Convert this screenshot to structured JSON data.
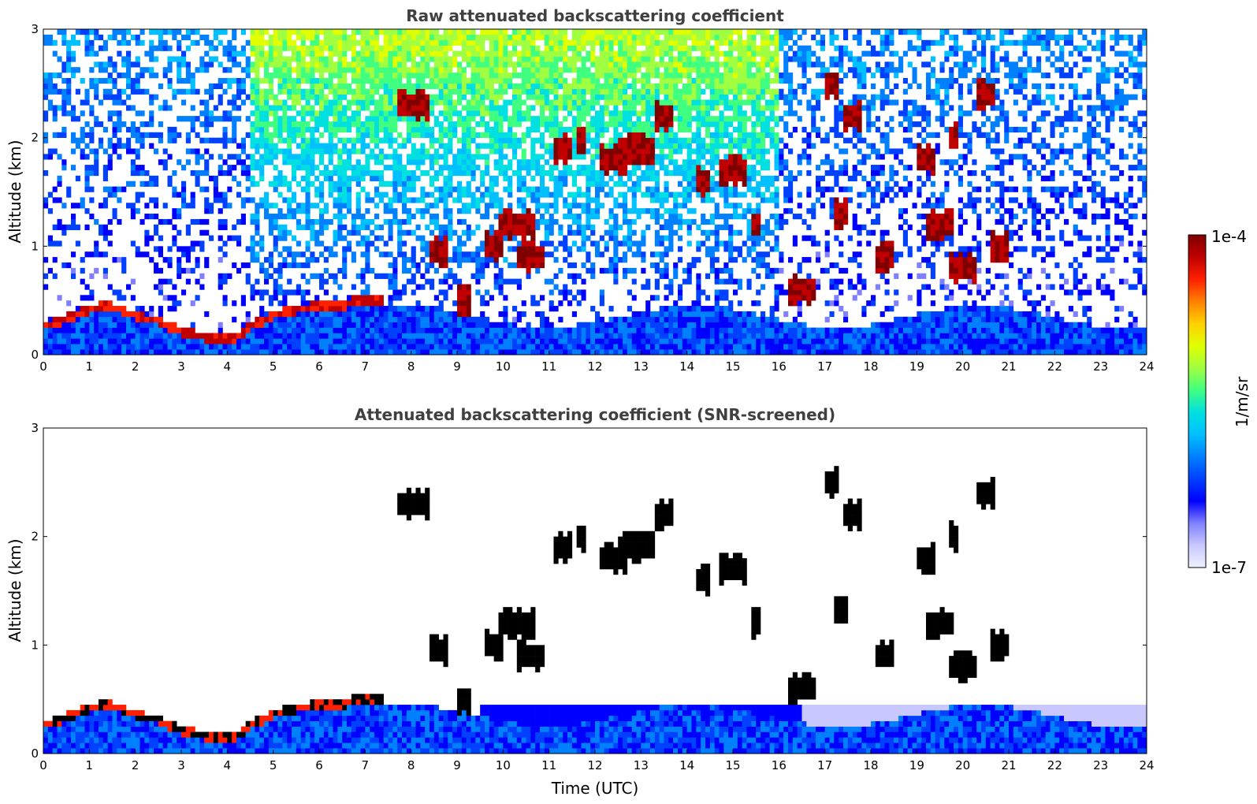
{
  "chart_data": [
    {
      "type": "heatmap",
      "title": "Raw attenuated backscattering coefficient",
      "xlabel": "",
      "ylabel": "Altitude (km)",
      "xlim": [
        0,
        24
      ],
      "ylim": [
        0,
        3
      ],
      "x_ticks": [
        0,
        1,
        2,
        3,
        4,
        5,
        6,
        7,
        8,
        9,
        10,
        11,
        12,
        13,
        14,
        15,
        16,
        17,
        18,
        19,
        20,
        21,
        22,
        23,
        24
      ],
      "y_ticks": [
        0,
        1,
        2,
        3
      ],
      "screened": false,
      "boundary_layer": [
        [
          0,
          0.3
        ],
        [
          1,
          0.45
        ],
        [
          1.4,
          0.5
        ],
        [
          2,
          0.4
        ],
        [
          2.5,
          0.35
        ],
        [
          3,
          0.25
        ],
        [
          3.5,
          0.2
        ],
        [
          4.2,
          0.2
        ],
        [
          4.5,
          0.3
        ],
        [
          5,
          0.4
        ],
        [
          5.5,
          0.45
        ],
        [
          6,
          0.5
        ],
        [
          6.5,
          0.5
        ],
        [
          7,
          0.55
        ],
        [
          7.4,
          0.55
        ]
      ],
      "cloud_segments": [
        [
          8.1,
          2.3,
          0.35
        ],
        [
          8.6,
          0.95,
          0.25
        ],
        [
          9.2,
          0.5,
          0.15
        ],
        [
          9.8,
          1.0,
          0.25
        ],
        [
          10.3,
          1.2,
          0.35
        ],
        [
          10.6,
          0.9,
          0.3
        ],
        [
          11.3,
          1.9,
          0.25
        ],
        [
          11.7,
          2.0,
          0.1
        ],
        [
          12.4,
          1.8,
          0.3
        ],
        [
          12.9,
          1.9,
          0.35
        ],
        [
          13.5,
          2.2,
          0.2
        ],
        [
          14.3,
          1.6,
          0.15
        ],
        [
          15.0,
          1.7,
          0.3
        ],
        [
          15.5,
          1.2,
          0.1
        ],
        [
          16.5,
          0.6,
          0.3
        ],
        [
          17.3,
          1.3,
          0.15
        ],
        [
          17.2,
          2.5,
          0.15
        ],
        [
          17.6,
          2.2,
          0.2
        ],
        [
          18.3,
          0.9,
          0.2
        ],
        [
          19.2,
          1.8,
          0.2
        ],
        [
          19.5,
          1.2,
          0.3
        ],
        [
          19.8,
          2.0,
          0.1
        ],
        [
          20.0,
          0.8,
          0.3
        ],
        [
          20.5,
          2.4,
          0.2
        ],
        [
          20.8,
          1.0,
          0.15
        ]
      ],
      "colorbar": {
        "label": "1/m/sr",
        "min_label": "1e-7",
        "max_label": "1e-4",
        "scale": "log"
      }
    },
    {
      "type": "heatmap",
      "title": "Attenuated backscattering coefficient (SNR-screened)",
      "xlabel": "Time (UTC)",
      "ylabel": "Altitude (km)",
      "xlim": [
        0,
        24
      ],
      "ylim": [
        0,
        3
      ],
      "x_ticks": [
        0,
        1,
        2,
        3,
        4,
        5,
        6,
        7,
        8,
        9,
        10,
        11,
        12,
        13,
        14,
        15,
        16,
        17,
        18,
        19,
        20,
        21,
        22,
        23,
        24
      ],
      "y_ticks": [
        0,
        1,
        2,
        3
      ],
      "screened": true,
      "boundary_layer": [
        [
          0,
          0.3
        ],
        [
          1,
          0.45
        ],
        [
          1.4,
          0.5
        ],
        [
          2,
          0.4
        ],
        [
          2.5,
          0.35
        ],
        [
          3,
          0.25
        ],
        [
          3.5,
          0.2
        ],
        [
          4.2,
          0.2
        ],
        [
          4.5,
          0.3
        ],
        [
          5,
          0.4
        ],
        [
          5.5,
          0.45
        ],
        [
          6,
          0.5
        ],
        [
          6.5,
          0.5
        ],
        [
          7,
          0.55
        ],
        [
          7.4,
          0.55
        ]
      ],
      "cloud_segments": [
        [
          8.1,
          2.3,
          0.35
        ],
        [
          8.6,
          0.95,
          0.25
        ],
        [
          9.2,
          0.5,
          0.15
        ],
        [
          9.8,
          1.0,
          0.25
        ],
        [
          10.3,
          1.2,
          0.35
        ],
        [
          10.6,
          0.9,
          0.3
        ],
        [
          11.3,
          1.9,
          0.25
        ],
        [
          11.7,
          2.0,
          0.1
        ],
        [
          12.4,
          1.8,
          0.3
        ],
        [
          12.9,
          1.9,
          0.35
        ],
        [
          13.5,
          2.2,
          0.2
        ],
        [
          14.3,
          1.6,
          0.15
        ],
        [
          15.0,
          1.7,
          0.3
        ],
        [
          15.5,
          1.2,
          0.1
        ],
        [
          16.5,
          0.6,
          0.3
        ],
        [
          17.3,
          1.3,
          0.15
        ],
        [
          17.2,
          2.5,
          0.15
        ],
        [
          17.6,
          2.2,
          0.2
        ],
        [
          18.3,
          0.9,
          0.2
        ],
        [
          19.2,
          1.8,
          0.2
        ],
        [
          19.5,
          1.2,
          0.3
        ],
        [
          19.8,
          2.0,
          0.1
        ],
        [
          20.0,
          0.8,
          0.3
        ],
        [
          20.5,
          2.4,
          0.2
        ],
        [
          20.8,
          1.0,
          0.15
        ]
      ]
    }
  ],
  "colormap": [
    "#f0f0ff",
    "#c8c8ff",
    "#8080ff",
    "#0000ff",
    "#0040ff",
    "#0080ff",
    "#00c0ff",
    "#00e0e0",
    "#40ff80",
    "#a0ff40",
    "#e0ff00",
    "#ffd000",
    "#ff8000",
    "#ff2000",
    "#c00000",
    "#800000"
  ]
}
